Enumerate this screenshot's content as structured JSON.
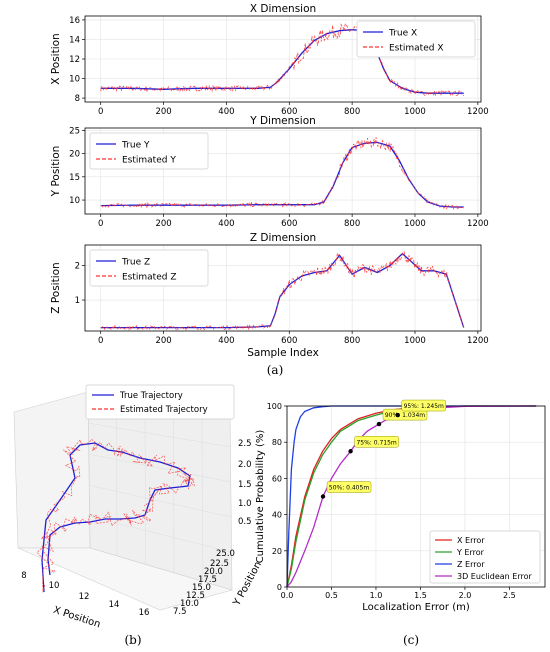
{
  "panel_labels": [
    "(a)",
    "(b)",
    "(c)"
  ],
  "chart_data": [
    {
      "type": "line",
      "title": "X Dimension",
      "xlabel": "",
      "ylabel": "X Position",
      "xlim": [
        -50,
        1210
      ],
      "ylim": [
        7.6,
        16.4
      ],
      "xticks": [
        0,
        200,
        400,
        600,
        800,
        1000,
        1200
      ],
      "yticks": [
        8,
        10,
        12,
        14,
        16
      ],
      "grid": true,
      "legend": "top-right",
      "series": [
        {
          "name": "True X",
          "style": "solid",
          "color": "#1f1fd6",
          "x": [
            0,
            100,
            200,
            300,
            400,
            500,
            540,
            560,
            600,
            640,
            680,
            720,
            760,
            800,
            840,
            860,
            880,
            900,
            920,
            960,
            1000,
            1040,
            1080,
            1120,
            1155
          ],
          "y": [
            9.0,
            9.0,
            8.9,
            9.0,
            9.0,
            9.0,
            9.1,
            9.6,
            11.0,
            12.6,
            13.9,
            14.6,
            14.9,
            15.0,
            14.9,
            14.0,
            12.6,
            11.0,
            9.8,
            9.0,
            8.6,
            8.5,
            8.5,
            8.5,
            8.5
          ]
        },
        {
          "name": "Estimated X",
          "style": "dashed",
          "color": "#ff3333",
          "noise": 0.45,
          "x": [
            0,
            100,
            200,
            300,
            400,
            500,
            540,
            560,
            600,
            640,
            680,
            720,
            760,
            800,
            840,
            860,
            880,
            900,
            920,
            960,
            1000,
            1040,
            1080,
            1120,
            1155
          ],
          "y": [
            9.0,
            9.0,
            8.9,
            9.0,
            9.0,
            9.0,
            9.1,
            9.6,
            11.0,
            12.6,
            13.9,
            14.6,
            14.9,
            15.0,
            14.9,
            14.0,
            12.6,
            11.0,
            9.8,
            9.0,
            8.6,
            8.5,
            8.5,
            8.5,
            8.5
          ]
        }
      ]
    },
    {
      "type": "line",
      "title": "Y Dimension",
      "xlabel": "",
      "ylabel": "Y Position",
      "xlim": [
        -50,
        1210
      ],
      "ylim": [
        7.0,
        25.5
      ],
      "xticks": [
        0,
        200,
        400,
        600,
        800,
        1000,
        1200
      ],
      "yticks": [
        10,
        15,
        20,
        25
      ],
      "grid": true,
      "legend": "top-left",
      "series": [
        {
          "name": "True Y",
          "style": "solid",
          "color": "#1f1fd6",
          "x": [
            0,
            100,
            200,
            300,
            400,
            500,
            600,
            680,
            710,
            740,
            770,
            800,
            840,
            880,
            920,
            950,
            980,
            1010,
            1040,
            1080,
            1120,
            1155
          ],
          "y": [
            8.8,
            8.9,
            8.9,
            8.9,
            8.9,
            9.0,
            9.0,
            9.0,
            9.6,
            13.0,
            18.0,
            21.3,
            22.2,
            22.4,
            21.6,
            18.5,
            14.5,
            11.5,
            9.6,
            8.7,
            8.5,
            8.5
          ]
        },
        {
          "name": "Estimated Y",
          "style": "dashed",
          "color": "#ff3333",
          "noise": 0.7,
          "x": [
            0,
            100,
            200,
            300,
            400,
            500,
            600,
            680,
            710,
            740,
            770,
            800,
            840,
            880,
            920,
            950,
            980,
            1010,
            1040,
            1080,
            1120,
            1155
          ],
          "y": [
            8.8,
            8.9,
            8.9,
            8.9,
            8.9,
            9.0,
            9.0,
            9.0,
            9.6,
            13.0,
            18.0,
            21.3,
            22.2,
            22.4,
            21.6,
            18.5,
            14.5,
            11.5,
            9.6,
            8.7,
            8.5,
            8.5
          ]
        }
      ]
    },
    {
      "type": "line",
      "title": "Z Dimension",
      "xlabel": "Sample Index",
      "ylabel": "Z Position",
      "xlim": [
        -50,
        1210
      ],
      "ylim": [
        0.1,
        2.6
      ],
      "xticks": [
        0,
        200,
        400,
        600,
        800,
        1000,
        1200
      ],
      "yticks": [
        1,
        2
      ],
      "grid": true,
      "legend": "top-left",
      "series": [
        {
          "name": "True Z",
          "style": "solid",
          "color": "#1f1fd6",
          "x": [
            0,
            100,
            200,
            300,
            400,
            500,
            540,
            555,
            570,
            600,
            640,
            680,
            720,
            760,
            800,
            840,
            880,
            920,
            960,
            990,
            1020,
            1060,
            1100,
            1130,
            1155
          ],
          "y": [
            0.2,
            0.2,
            0.2,
            0.2,
            0.2,
            0.22,
            0.25,
            0.6,
            1.1,
            1.45,
            1.7,
            1.8,
            1.85,
            2.3,
            1.75,
            1.95,
            1.8,
            2.0,
            2.35,
            2.1,
            1.85,
            1.85,
            1.75,
            0.9,
            0.2
          ]
        },
        {
          "name": "Estimated Z",
          "style": "dashed",
          "color": "#ff3333",
          "noise": 0.09,
          "x": [
            0,
            100,
            200,
            300,
            400,
            500,
            540,
            555,
            570,
            600,
            640,
            680,
            720,
            760,
            800,
            840,
            880,
            920,
            960,
            990,
            1020,
            1060,
            1100,
            1130,
            1155
          ],
          "y": [
            0.2,
            0.2,
            0.2,
            0.2,
            0.2,
            0.22,
            0.25,
            0.6,
            1.1,
            1.45,
            1.7,
            1.8,
            1.85,
            2.3,
            1.75,
            1.95,
            1.8,
            2.0,
            2.35,
            2.1,
            1.85,
            1.85,
            1.75,
            0.9,
            0.2
          ]
        }
      ]
    },
    {
      "type": "line",
      "subtype": "3d",
      "title": "",
      "xlabel": "X Position",
      "ylabel": "Y Position",
      "zlabel": "",
      "xticks": [
        8,
        10,
        12,
        14,
        16
      ],
      "yticks": [
        7.5,
        10.0,
        12.5,
        15.0,
        17.5,
        20.0,
        22.5,
        25.0
      ],
      "zticks": [
        0.5,
        1.0,
        1.5,
        2.0,
        2.5
      ],
      "xtick_labels": [
        "8",
        "10",
        "12",
        "14",
        "16"
      ],
      "ytick_labels": [
        "7.5",
        "10.0",
        "12.5",
        "15.0",
        "17.5",
        "20.0",
        "22.5",
        "25.0"
      ],
      "ztick_labels": [
        "0.5",
        "1.0",
        "1.5",
        "2.0",
        "2.5"
      ],
      "legend": "top-left",
      "series": [
        {
          "name": "True Trajectory",
          "style": "solid",
          "color": "#1f1fd6"
        },
        {
          "name": "Estimated Trajectory",
          "style": "dashed",
          "color": "#ff3333"
        }
      ]
    },
    {
      "type": "line",
      "title": "",
      "xlabel": "Localization Error (m)",
      "ylabel": "Cumulative Probability (%)",
      "xlim": [
        0,
        2.9
      ],
      "ylim": [
        0,
        100
      ],
      "xticks": [
        0.0,
        0.5,
        1.0,
        1.5,
        2.0,
        2.5
      ],
      "xtick_labels": [
        "0.0",
        "0.5",
        "1.0",
        "1.5",
        "2.0",
        "2.5"
      ],
      "yticks": [
        0,
        20,
        40,
        60,
        80,
        100
      ],
      "grid": true,
      "legend": "bottom-right",
      "series": [
        {
          "name": "X Error",
          "color": "#e0211f",
          "x": [
            0,
            0.05,
            0.1,
            0.2,
            0.3,
            0.4,
            0.5,
            0.6,
            0.7,
            0.8,
            1.0,
            1.2,
            1.5,
            2.0,
            2.8
          ],
          "y": [
            0,
            12,
            28,
            50,
            65,
            75,
            82,
            87,
            90,
            93,
            96,
            98,
            99.5,
            100,
            100
          ]
        },
        {
          "name": "Y Error",
          "color": "#2ca02c",
          "x": [
            0,
            0.05,
            0.1,
            0.2,
            0.3,
            0.4,
            0.5,
            0.6,
            0.7,
            0.8,
            1.0,
            1.2,
            1.5,
            2.0,
            2.8
          ],
          "y": [
            0,
            10,
            25,
            48,
            63,
            73,
            80,
            86,
            89,
            92,
            95,
            97.5,
            99.3,
            100,
            100
          ]
        },
        {
          "name": "Z Error",
          "color": "#1f3fe6",
          "x": [
            0,
            0.02,
            0.05,
            0.08,
            0.1,
            0.15,
            0.2,
            0.3,
            0.4,
            0.5,
            0.7,
            2.8
          ],
          "y": [
            0,
            30,
            65,
            80,
            87,
            94,
            97,
            99,
            99.6,
            100,
            100,
            100
          ]
        },
        {
          "name": "3D Euclidean Error",
          "color": "#b42cc8",
          "x": [
            0,
            0.05,
            0.1,
            0.2,
            0.3,
            0.405,
            0.5,
            0.6,
            0.715,
            0.8,
            0.9,
            1.034,
            1.1,
            1.245,
            1.4,
            1.6,
            1.8,
            2.0,
            2.8
          ],
          "y": [
            0,
            3,
            8,
            20,
            33,
            50,
            60,
            68,
            75,
            81,
            86,
            90,
            92,
            95,
            97,
            98.5,
            99.3,
            99.8,
            100
          ]
        }
      ],
      "annotations": [
        {
          "x": 0.405,
          "y": 50,
          "text": "50%:  0.405m"
        },
        {
          "x": 0.715,
          "y": 75,
          "text": "75%:  0.715m"
        },
        {
          "x": 1.034,
          "y": 90,
          "text": "90%:  1.034m"
        },
        {
          "x": 1.245,
          "y": 95,
          "text": "95%:  1.245m"
        }
      ]
    }
  ]
}
